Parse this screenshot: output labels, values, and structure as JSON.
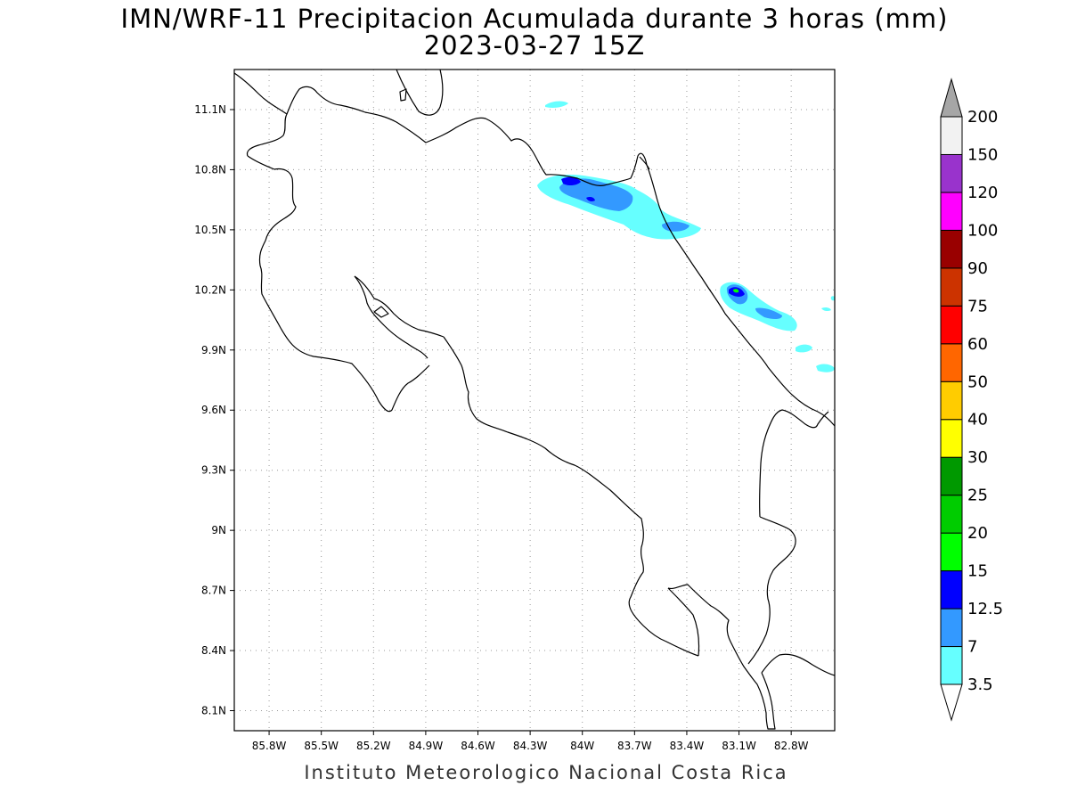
{
  "title": {
    "line1": "IMN/WRF-11 Precipitacion Acumulada durante 3 horas (mm)",
    "line2": "2023-03-27 15Z"
  },
  "footer": "Instituto Meteorologico Nacional Costa Rica",
  "map": {
    "lon_range": [
      -86.0,
      -82.55
    ],
    "lat_range": [
      8.0,
      11.3
    ],
    "lon_ticks": [
      {
        "value": -85.8,
        "label": "85.8W"
      },
      {
        "value": -85.5,
        "label": "85.5W"
      },
      {
        "value": -85.2,
        "label": "85.2W"
      },
      {
        "value": -84.9,
        "label": "84.9W"
      },
      {
        "value": -84.6,
        "label": "84.6W"
      },
      {
        "value": -84.3,
        "label": "84.3W"
      },
      {
        "value": -84.0,
        "label": "84W"
      },
      {
        "value": -83.7,
        "label": "83.7W"
      },
      {
        "value": -83.4,
        "label": "83.4W"
      },
      {
        "value": -83.1,
        "label": "83.1W"
      },
      {
        "value": -82.8,
        "label": "82.8W"
      }
    ],
    "lat_ticks": [
      {
        "value": 11.1,
        "label": "11.1N"
      },
      {
        "value": 10.8,
        "label": "10.8N"
      },
      {
        "value": 10.5,
        "label": "10.5N"
      },
      {
        "value": 10.2,
        "label": "10.2N"
      },
      {
        "value": 9.9,
        "label": "9.9N"
      },
      {
        "value": 9.6,
        "label": "9.6N"
      },
      {
        "value": 9.3,
        "label": "9.3N"
      },
      {
        "value": 9.0,
        "label": "9N"
      },
      {
        "value": 8.7,
        "label": "8.7N"
      },
      {
        "value": 8.4,
        "label": "8.4N"
      },
      {
        "value": 8.1,
        "label": "8.1N"
      }
    ],
    "grid": true
  },
  "colorbar": {
    "levels": [
      "3.5",
      "7",
      "12.5",
      "15",
      "20",
      "25",
      "30",
      "40",
      "50",
      "60",
      "75",
      "90",
      "100",
      "120",
      "150",
      "200"
    ],
    "colors": [
      "#66ffff",
      "#3399ff",
      "#0000ff",
      "#00ff00",
      "#00cc00",
      "#009900",
      "#ffff00",
      "#ffcc00",
      "#ff6600",
      "#ff0000",
      "#cc3300",
      "#990000",
      "#ff00ff",
      "#9933cc",
      "#f2f2f2"
    ],
    "under_color": "#ffffff",
    "over_color": "#a6a6a6",
    "outline": "#000000"
  },
  "rain_areas": [
    {
      "level": "3.5",
      "color": "#66ffff",
      "lon": -84.19,
      "lat": 10.72
    },
    {
      "level": "3.5",
      "color": "#66ffff",
      "lon": -83.85,
      "lat": 10.62
    },
    {
      "level": "3.5",
      "color": "#66ffff",
      "lon": -83.55,
      "lat": 10.5
    },
    {
      "level": "3.5",
      "color": "#66ffff",
      "lon": -83.03,
      "lat": 10.17
    },
    {
      "level": "3.5",
      "color": "#66ffff",
      "lon": -82.88,
      "lat": 10.07
    },
    {
      "level": "3.5",
      "color": "#66ffff",
      "lon": -82.77,
      "lat": 9.91
    },
    {
      "level": "3.5",
      "color": "#66ffff",
      "lon": -82.6,
      "lat": 9.8
    },
    {
      "level": "3.5",
      "color": "#66ffff",
      "lon": -84.1,
      "lat": 11.14
    },
    {
      "level": "7",
      "color": "#3399ff",
      "lon": -83.98,
      "lat": 10.74
    },
    {
      "level": "7",
      "color": "#3399ff",
      "lon": -83.87,
      "lat": 10.66
    },
    {
      "level": "7",
      "color": "#3399ff",
      "lon": -83.42,
      "lat": 10.52
    },
    {
      "level": "7",
      "color": "#3399ff",
      "lon": -83.05,
      "lat": 10.19
    },
    {
      "level": "7",
      "color": "#3399ff",
      "lon": -82.92,
      "lat": 10.1
    },
    {
      "level": "12.5",
      "color": "#0000ff",
      "lon": -83.97,
      "lat": 10.76
    },
    {
      "level": "12.5",
      "color": "#0000ff",
      "lon": -83.92,
      "lat": 10.67
    },
    {
      "level": "12.5",
      "color": "#0000ff",
      "lon": -83.05,
      "lat": 10.19
    },
    {
      "level": "15",
      "color": "#00ff00",
      "lon": -83.05,
      "lat": 10.19
    }
  ]
}
